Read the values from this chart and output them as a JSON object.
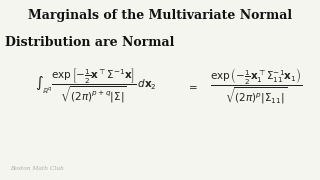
{
  "title_line1": "Marginals of the Multivariate Normal",
  "title_line2": "Distribution are Normal",
  "lhs": "$\\int_{\\mathbb{R}^q} \\dfrac{\\exp\\left[-\\frac{1}{2}\\mathbf{x}^\\top\\Sigma^{-1}\\mathbf{x}\\right]}{\\sqrt{(2\\pi)^{p+q}|\\Sigma|}}\\, d\\mathbf{x}_2$",
  "equals": "$=$",
  "rhs": "$\\dfrac{\\exp\\left(-\\frac{1}{2}\\mathbf{x}_1^\\top\\Sigma_{11}^{-1}\\mathbf{x}_1\\right)}{\\sqrt{(2\\pi)^p|\\Sigma_{11}|}}$",
  "watermark": "Boston Math Club",
  "bg_color": "#f5f5f0",
  "title_color": "#111111",
  "eq_color": "#222222",
  "watermark_color": "#aaaaaa",
  "title_fontsize": 9.0,
  "eq_fontsize": 7.5,
  "watermark_fontsize": 4.2
}
